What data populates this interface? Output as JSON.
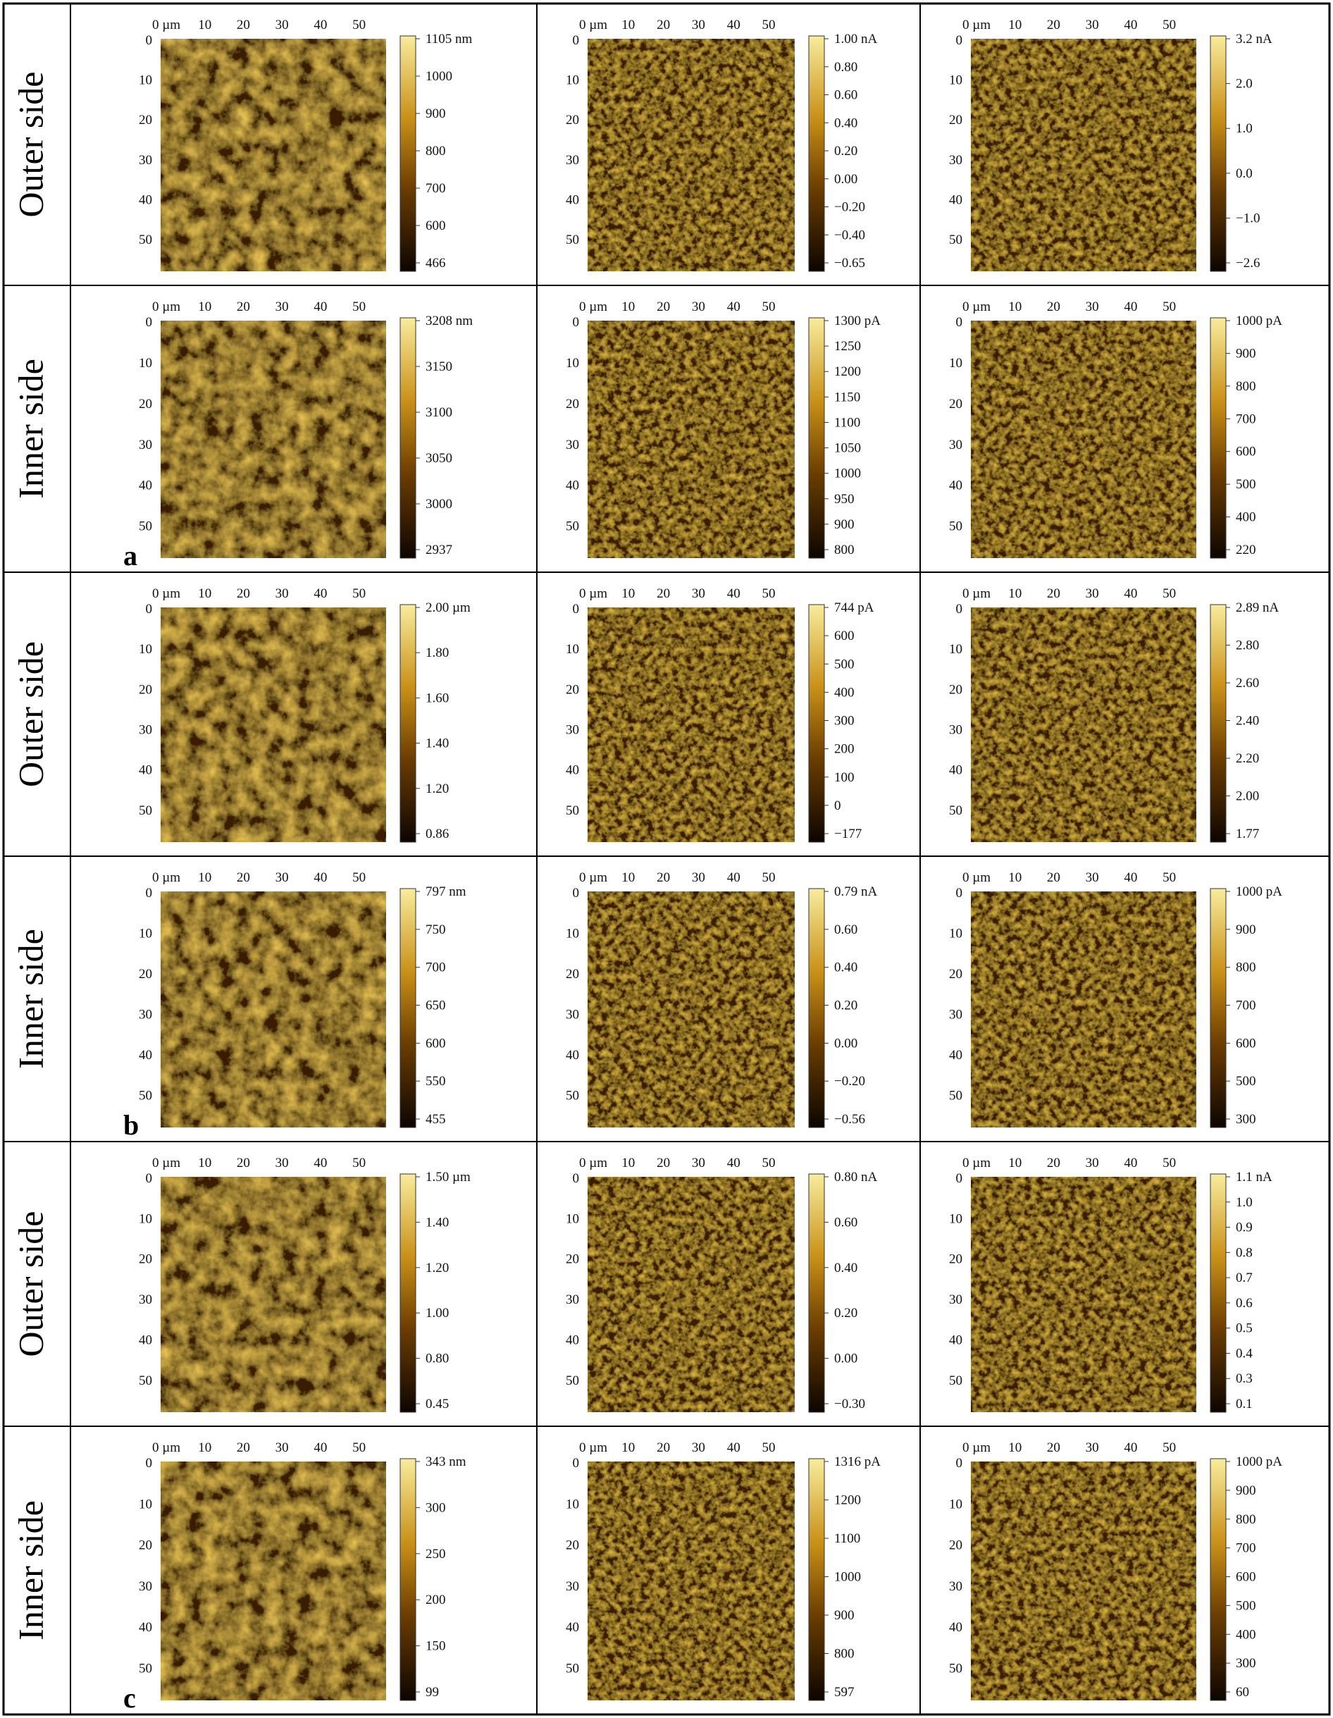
{
  "axis_unit": "µm",
  "x_tick_labels": [
    "0 µm",
    "10",
    "20",
    "30",
    "40",
    "50"
  ],
  "y_tick_labels": [
    "0",
    "10",
    "20",
    "30",
    "40",
    "50"
  ],
  "colors": {
    "dark": "#1a0b00",
    "mid": "#8a5400",
    "light": "#f2dc6a",
    "border": "#000000"
  },
  "icon_names": {
    "map_texture": "afm-topography-texture",
    "colorbar": "gradient-colorbar"
  },
  "panel_letters": [
    "a",
    "b",
    "c"
  ],
  "rows": [
    {
      "side_label": "Outer side",
      "sample_letter": "",
      "maps": [
        {
          "scale_labels": [
            "1105 nm",
            "1000",
            "900",
            "800",
            "700",
            "600",
            "466"
          ]
        },
        {
          "scale_labels": [
            "1.00 nA",
            "0.80",
            "0.60",
            "0.40",
            "0.20",
            "0.00",
            "−0.20",
            "−0.40",
            "−0.65"
          ]
        },
        {
          "scale_labels": [
            "3.2 nA",
            "2.0",
            "1.0",
            "0.0",
            "−1.0",
            "−2.6"
          ]
        }
      ]
    },
    {
      "side_label": "Inner side",
      "sample_letter": "a",
      "maps": [
        {
          "scale_labels": [
            "3208 nm",
            "3150",
            "3100",
            "3050",
            "3000",
            "2937"
          ]
        },
        {
          "scale_labels": [
            "1300 pA",
            "1250",
            "1200",
            "1150",
            "1100",
            "1050",
            "1000",
            "950",
            "900",
            "800"
          ]
        },
        {
          "scale_labels": [
            "1000 pA",
            "900",
            "800",
            "700",
            "600",
            "500",
            "400",
            "220"
          ]
        }
      ]
    },
    {
      "side_label": "Outer side",
      "sample_letter": "",
      "maps": [
        {
          "scale_labels": [
            "2.00 µm",
            "1.80",
            "1.60",
            "1.40",
            "1.20",
            "0.86"
          ]
        },
        {
          "scale_labels": [
            "744 pA",
            "600",
            "500",
            "400",
            "300",
            "200",
            "100",
            "0",
            "−177"
          ]
        },
        {
          "scale_labels": [
            "2.89 nA",
            "2.80",
            "2.60",
            "2.40",
            "2.20",
            "2.00",
            "1.77"
          ]
        }
      ]
    },
    {
      "side_label": "Inner side",
      "sample_letter": "b",
      "maps": [
        {
          "scale_labels": [
            "797 nm",
            "750",
            "700",
            "650",
            "600",
            "550",
            "455"
          ]
        },
        {
          "scale_labels": [
            "0.79 nA",
            "0.60",
            "0.40",
            "0.20",
            "0.00",
            "−0.20",
            "−0.56"
          ]
        },
        {
          "scale_labels": [
            "1000 pA",
            "900",
            "800",
            "700",
            "600",
            "500",
            "300"
          ]
        }
      ]
    },
    {
      "side_label": "Outer side",
      "sample_letter": "",
      "maps": [
        {
          "scale_labels": [
            "1.50 µm",
            "1.40",
            "1.20",
            "1.00",
            "0.80",
            "0.45"
          ]
        },
        {
          "scale_labels": [
            "0.80 nA",
            "0.60",
            "0.40",
            "0.20",
            "0.00",
            "−0.30"
          ]
        },
        {
          "scale_labels": [
            "1.1 nA",
            "1.0",
            "0.9",
            "0.8",
            "0.7",
            "0.6",
            "0.5",
            "0.4",
            "0.3",
            "0.1"
          ]
        }
      ]
    },
    {
      "side_label": "Inner side",
      "sample_letter": "c",
      "maps": [
        {
          "scale_labels": [
            "343 nm",
            "300",
            "250",
            "200",
            "150",
            "99"
          ]
        },
        {
          "scale_labels": [
            "1316 pA",
            "1200",
            "1100",
            "1000",
            "900",
            "800",
            "597"
          ]
        },
        {
          "scale_labels": [
            "1000 pA",
            "900",
            "800",
            "700",
            "600",
            "500",
            "400",
            "300",
            "60"
          ]
        }
      ]
    }
  ]
}
